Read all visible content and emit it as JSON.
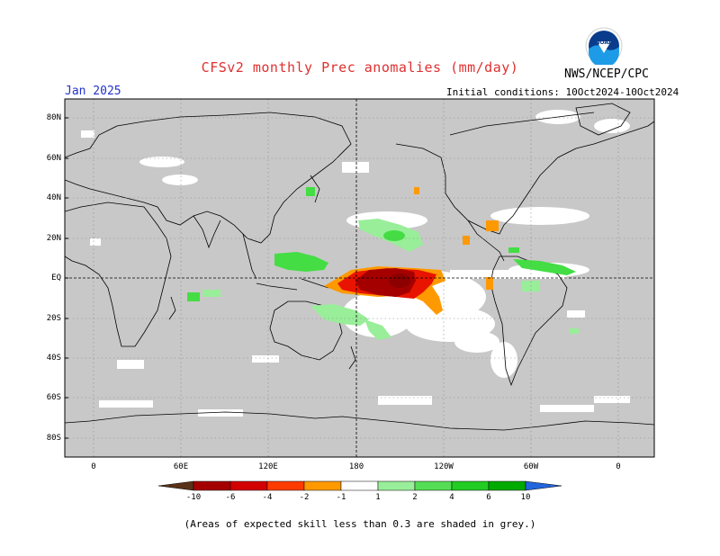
{
  "header": {
    "title": "CFSv2 monthly Prec anomalies (mm/day)",
    "agency": "NWS/NCEP/CPC",
    "logo_text": "NOAA",
    "month": "Jan 2025",
    "initial_conditions": "Initial conditions: 10Oct2024-10Oct2024"
  },
  "map": {
    "projection": "equirectangular, Pacific-centered",
    "land_skill_mask_color": "#c8c8c8",
    "ocean_color": "#ffffff",
    "lat_labels": [
      "80N",
      "60N",
      "40N",
      "20N",
      "EQ",
      "20S",
      "40S",
      "60S",
      "80S"
    ],
    "lon_labels": [
      "0",
      "60E",
      "120E",
      "180",
      "120W",
      "60W",
      "0"
    ],
    "anomaly_regions": [
      {
        "name": "central-pacific-dry",
        "category": "-10",
        "color": "#a50000"
      },
      {
        "name": "equatorial-dry-core",
        "category": "-6",
        "color": "#c80000"
      },
      {
        "name": "pacific-dry-fringe",
        "category": "-2",
        "color": "#ff9900"
      },
      {
        "name": "west-pacific-wet",
        "category": "2",
        "color": "#44dd44"
      },
      {
        "name": "hawaii-wet",
        "category": "1",
        "color": "#99ee99"
      },
      {
        "name": "south-pacific-wet",
        "category": "1",
        "color": "#99ee99"
      },
      {
        "name": "caribbean-dry",
        "category": "-2",
        "color": "#ff9900"
      },
      {
        "name": "amazon-wet",
        "category": "2",
        "color": "#44dd44"
      }
    ]
  },
  "colorbar": {
    "colors": [
      "#5a3219",
      "#a50000",
      "#d20000",
      "#ff3c00",
      "#ff9900",
      "#ffffff",
      "#99ee99",
      "#55dd55",
      "#22cc22",
      "#00aa00",
      "#2266dd"
    ],
    "labels": [
      "-10",
      "-6",
      "-4",
      "-2",
      "-1",
      "1",
      "2",
      "4",
      "6",
      "10"
    ]
  },
  "footnote": "(Areas of expected skill less than 0.3 are shaded in grey.)"
}
